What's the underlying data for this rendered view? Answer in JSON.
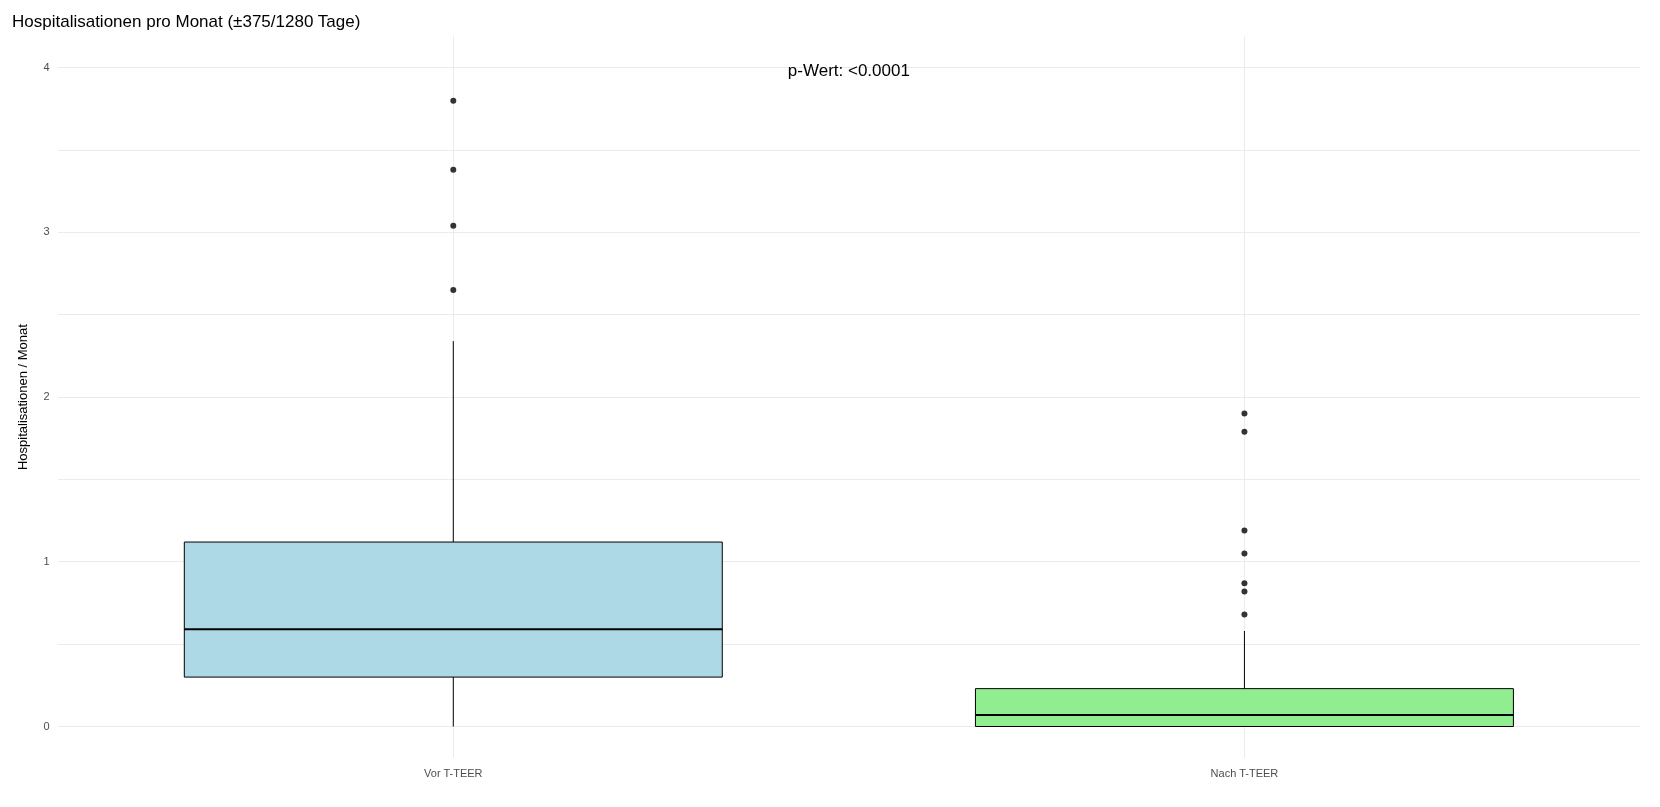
{
  "chart_data": {
    "type": "box",
    "title": "Hospitalisationen pro Monat (±375/1280 Tage)",
    "ylabel": "Hospitalisationen / Monat",
    "categories": [
      "Vor T-TEER",
      "Nach T-TEER"
    ],
    "colors": [
      "#add8e6",
      "#90ee90"
    ],
    "boxes": [
      {
        "low": 0,
        "q1": 0.3,
        "median": 0.59,
        "q3": 1.12,
        "high": 2.34,
        "outliers": [
          2.65,
          3.04,
          3.38,
          3.8
        ]
      },
      {
        "low": 0,
        "q1": 0,
        "median": 0.07,
        "q3": 0.23,
        "high": 0.58,
        "outliers": [
          0.68,
          0.82,
          0.87,
          1.05,
          1.19,
          1.79,
          1.9
        ]
      }
    ],
    "ylim": [
      -0.19,
      4.19
    ],
    "yticks": [
      0,
      {
        "value": 0.5,
        "label": null
      },
      1,
      {
        "value": 1.5,
        "label": null
      },
      2,
      {
        "value": 2.5,
        "label": null
      },
      3,
      {
        "value": 3.5,
        "label": null
      },
      4
    ],
    "grid": true,
    "legend": false,
    "annotations": [
      "p-Wert: <0.0001"
    ]
  }
}
